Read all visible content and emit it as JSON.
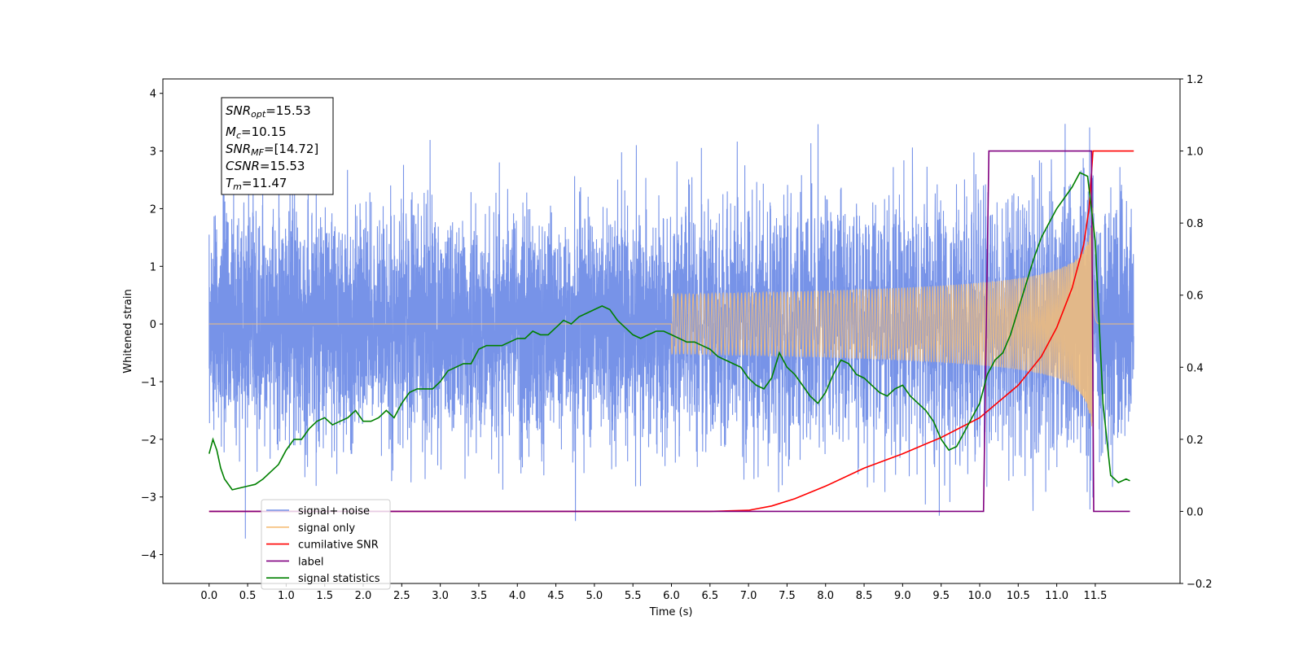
{
  "chart_data": {
    "type": "line",
    "title": "",
    "xlabel": "Time (s)",
    "ylabel": "Whitened strain",
    "xlim": [
      -0.6,
      12.6
    ],
    "ylim": [
      -4.5,
      4.25
    ],
    "y2lim": [
      -0.2,
      1.2
    ],
    "xticks": [
      "0.0",
      "0.5",
      "1.0",
      "1.5",
      "2.0",
      "2.5",
      "3.0",
      "3.5",
      "4.0",
      "4.5",
      "5.0",
      "5.5",
      "6.0",
      "6.5",
      "7.0",
      "7.5",
      "8.0",
      "8.5",
      "9.0",
      "9.5",
      "10.0",
      "10.5",
      "11.0",
      "11.5"
    ],
    "yticks": [
      "4",
      "3",
      "2",
      "1",
      "0",
      "−1",
      "−2",
      "−3",
      "−4"
    ],
    "y2ticks": [
      "1.2",
      "1.0",
      "0.8",
      "0.6",
      "0.4",
      "0.2",
      "0.0",
      "−0.2"
    ],
    "legend_position": "lower-left",
    "annotation": {
      "snr_opt": {
        "base": "SNR",
        "sub": "opt",
        "value": "=15.53"
      },
      "mc": {
        "base": "M",
        "sub": "c",
        "value": "=10.15"
      },
      "snr_mf": {
        "base": "SNR",
        "sub": "MF",
        "value": "=[14.72]"
      },
      "csnr": {
        "base": "CSNR",
        "value": "=15.53"
      },
      "tm": {
        "base": "T",
        "sub": "m",
        "value": "=11.47"
      }
    },
    "series": [
      {
        "name": "signal+ noise",
        "color": "#7793e8",
        "axis": "left",
        "kind": "noise",
        "duration": 12.0,
        "sigma": 1.0,
        "noise_range": [
          -4.1,
          3.85
        ]
      },
      {
        "name": "signal only",
        "color": "#f5be78",
        "axis": "left",
        "kind": "chirp",
        "t_merger": 11.47,
        "peak_amplitude": 2.1
      },
      {
        "name": "cumilative SNR",
        "color": "#ff0000",
        "axis": "right",
        "x": [
          0,
          6.5,
          7.0,
          7.3,
          7.6,
          8.0,
          8.5,
          9.0,
          9.5,
          10.0,
          10.5,
          10.8,
          11.0,
          11.2,
          11.35,
          11.42,
          11.47,
          11.5,
          12.0
        ],
        "y": [
          0,
          0,
          0.003,
          0.015,
          0.035,
          0.07,
          0.12,
          0.16,
          0.205,
          0.26,
          0.35,
          0.43,
          0.51,
          0.62,
          0.74,
          0.84,
          1.0,
          1.0,
          1.0
        ]
      },
      {
        "name": "label",
        "color": "#800080",
        "axis": "right",
        "x": [
          0,
          10.05,
          10.12,
          11.45,
          11.48,
          11.95
        ],
        "y": [
          0,
          0,
          1,
          1,
          0,
          0
        ]
      },
      {
        "name": "signal statistics",
        "color": "#008000",
        "axis": "right",
        "x": [
          0.0,
          0.05,
          0.1,
          0.15,
          0.2,
          0.3,
          0.4,
          0.5,
          0.6,
          0.7,
          0.8,
          0.9,
          1.0,
          1.1,
          1.2,
          1.3,
          1.4,
          1.5,
          1.6,
          1.7,
          1.8,
          1.9,
          2.0,
          2.1,
          2.2,
          2.3,
          2.4,
          2.5,
          2.6,
          2.7,
          2.8,
          2.9,
          3.0,
          3.1,
          3.2,
          3.3,
          3.4,
          3.5,
          3.6,
          3.7,
          3.8,
          3.9,
          4.0,
          4.1,
          4.2,
          4.3,
          4.4,
          4.5,
          4.6,
          4.7,
          4.8,
          4.9,
          5.0,
          5.1,
          5.2,
          5.3,
          5.4,
          5.5,
          5.6,
          5.7,
          5.8,
          5.9,
          6.0,
          6.1,
          6.2,
          6.3,
          6.4,
          6.5,
          6.6,
          6.7,
          6.8,
          6.9,
          7.0,
          7.1,
          7.2,
          7.3,
          7.4,
          7.5,
          7.6,
          7.7,
          7.8,
          7.9,
          8.0,
          8.1,
          8.2,
          8.3,
          8.4,
          8.5,
          8.6,
          8.7,
          8.8,
          8.9,
          9.0,
          9.1,
          9.2,
          9.3,
          9.4,
          9.5,
          9.6,
          9.7,
          9.8,
          9.9,
          10.0,
          10.1,
          10.2,
          10.3,
          10.4,
          10.5,
          10.6,
          10.7,
          10.8,
          10.9,
          11.0,
          11.1,
          11.2,
          11.3,
          11.4,
          11.5,
          11.6,
          11.7,
          11.8,
          11.9,
          11.95
        ],
        "y": [
          0.16,
          0.2,
          0.17,
          0.12,
          0.09,
          0.06,
          0.065,
          0.07,
          0.075,
          0.09,
          0.11,
          0.13,
          0.17,
          0.2,
          0.2,
          0.23,
          0.25,
          0.26,
          0.24,
          0.25,
          0.26,
          0.28,
          0.25,
          0.25,
          0.26,
          0.28,
          0.26,
          0.3,
          0.33,
          0.34,
          0.34,
          0.34,
          0.36,
          0.39,
          0.4,
          0.41,
          0.41,
          0.45,
          0.46,
          0.46,
          0.46,
          0.47,
          0.48,
          0.48,
          0.5,
          0.49,
          0.49,
          0.51,
          0.53,
          0.52,
          0.54,
          0.55,
          0.56,
          0.57,
          0.56,
          0.53,
          0.51,
          0.49,
          0.48,
          0.49,
          0.5,
          0.5,
          0.49,
          0.48,
          0.47,
          0.47,
          0.46,
          0.45,
          0.43,
          0.42,
          0.41,
          0.4,
          0.37,
          0.35,
          0.34,
          0.37,
          0.44,
          0.4,
          0.38,
          0.35,
          0.32,
          0.3,
          0.33,
          0.38,
          0.42,
          0.41,
          0.38,
          0.37,
          0.35,
          0.33,
          0.32,
          0.34,
          0.35,
          0.32,
          0.3,
          0.28,
          0.25,
          0.2,
          0.17,
          0.18,
          0.22,
          0.26,
          0.3,
          0.38,
          0.42,
          0.44,
          0.49,
          0.56,
          0.63,
          0.7,
          0.76,
          0.8,
          0.84,
          0.87,
          0.9,
          0.94,
          0.93,
          0.75,
          0.3,
          0.1,
          0.08,
          0.09,
          0.085
        ]
      }
    ]
  }
}
